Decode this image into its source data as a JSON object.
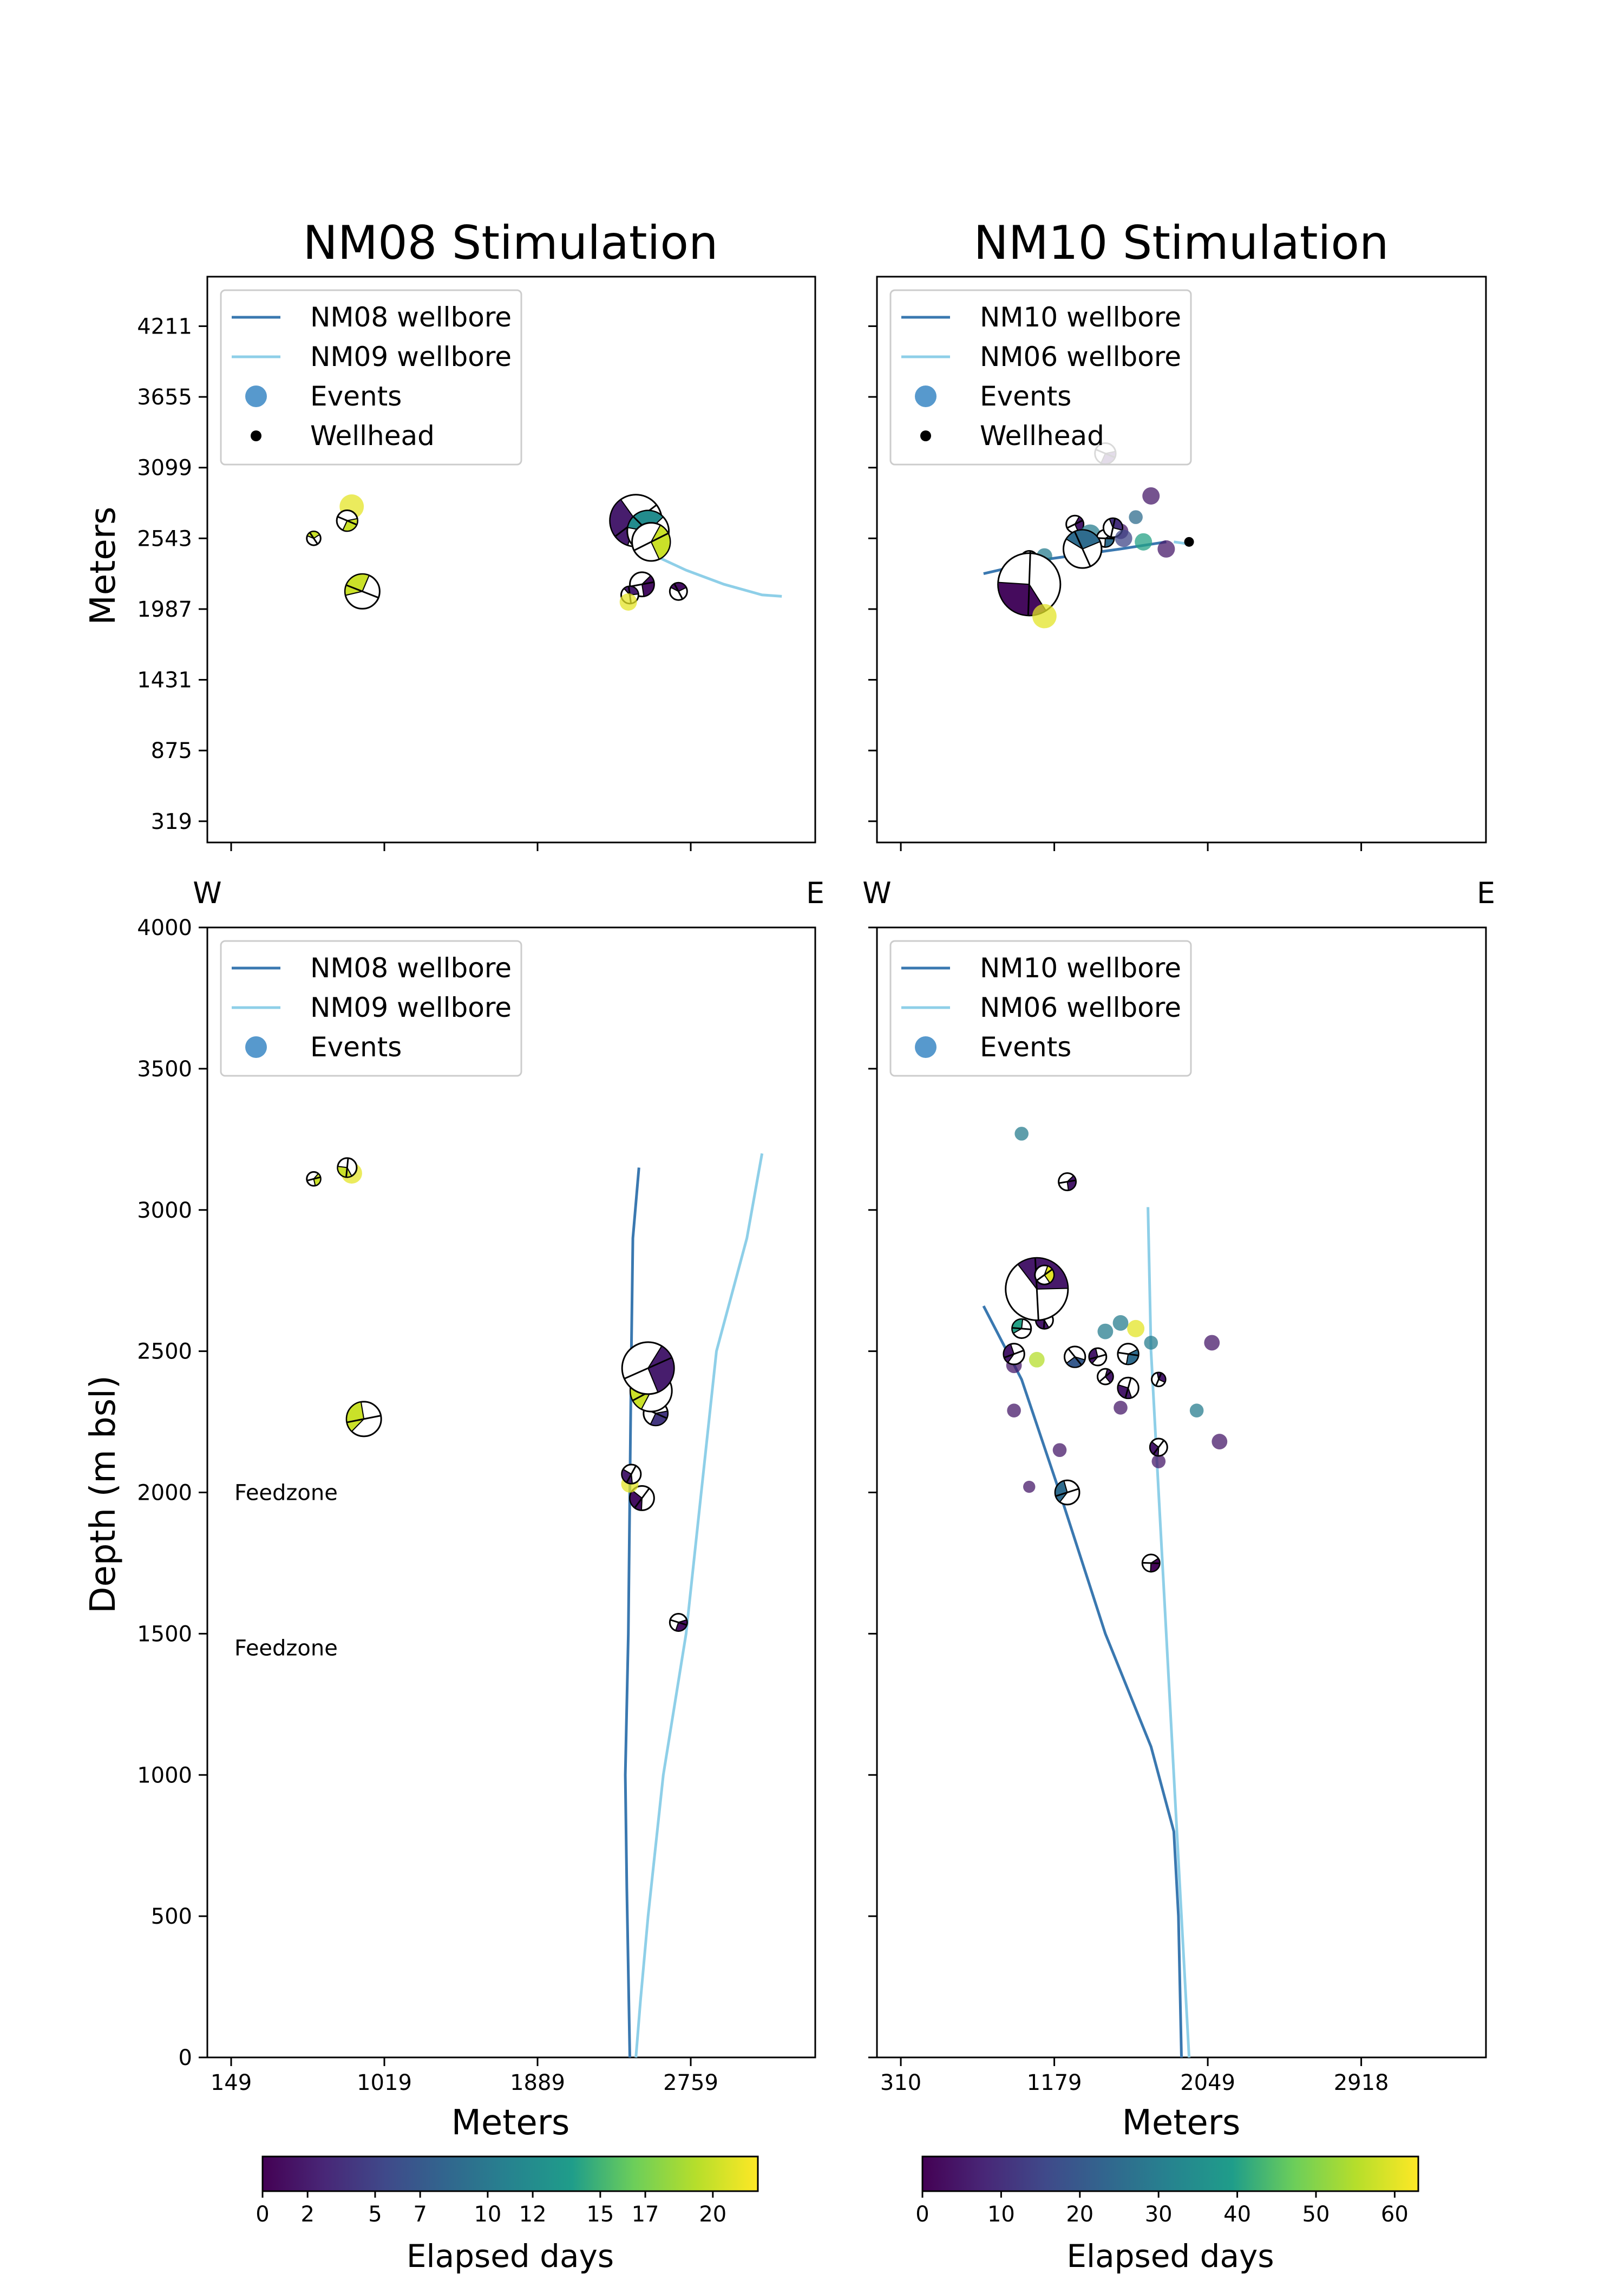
{
  "chart_data": [
    {
      "type": "scatter",
      "title": "NM08 Stimulation",
      "view": "map",
      "ylabel": "Meters",
      "xlim": [
        -1.0,
        3.0
      ],
      "ylim": [
        -0.3,
        7.7
      ],
      "y_ticks": [
        "319",
        "875",
        "1431",
        "1987",
        "2543",
        "3099",
        "3655",
        "4211"
      ],
      "legend": {
        "position": "upper-left",
        "entries": [
          "NM08 wellbore",
          "NM09 wellbore",
          "Events",
          "Wellhead"
        ]
      },
      "series": [
        {
          "name": "NM08 wellbore",
          "color": "#3a78b0",
          "points": [
            [
              1.78,
              4.0
            ],
            [
              1.8,
              3.95
            ]
          ]
        },
        {
          "name": "NM09 wellbore",
          "color": "#8ecfe8",
          "points": [
            [
              1.82,
              4.0
            ],
            [
              1.95,
              3.75
            ],
            [
              2.15,
              3.55
            ],
            [
              2.4,
              3.35
            ],
            [
              2.65,
              3.2
            ],
            [
              2.78,
              3.18
            ]
          ]
        },
        {
          "name": "Wellhead",
          "color": "#000000",
          "points": [
            [
              1.8,
              3.98
            ]
          ]
        }
      ],
      "events": [
        {
          "x": -0.05,
          "y": 4.45,
          "days": 21,
          "size": 14,
          "beach": false
        },
        {
          "x": -0.3,
          "y": 4.0,
          "days": 20,
          "size": 8,
          "beach": true
        },
        {
          "x": -0.08,
          "y": 4.25,
          "days": 20,
          "size": 12,
          "beach": true
        },
        {
          "x": 0.02,
          "y": 3.25,
          "days": 20,
          "size": 20,
          "beach": true
        },
        {
          "x": 1.82,
          "y": 4.25,
          "days": 2,
          "size": 30,
          "beach": true
        },
        {
          "x": 1.9,
          "y": 4.1,
          "days": 12,
          "size": 24,
          "beach": true
        },
        {
          "x": 1.92,
          "y": 3.95,
          "days": 20,
          "size": 22,
          "beach": true
        },
        {
          "x": 1.86,
          "y": 3.35,
          "days": 1,
          "size": 14,
          "beach": true
        },
        {
          "x": 1.78,
          "y": 3.2,
          "days": 2,
          "size": 10,
          "beach": true
        },
        {
          "x": 1.77,
          "y": 3.1,
          "days": 21,
          "size": 10,
          "beach": false
        },
        {
          "x": 2.1,
          "y": 3.25,
          "days": 1,
          "size": 10,
          "beach": true
        }
      ]
    },
    {
      "type": "scatter",
      "title": "NM10 Stimulation",
      "view": "map",
      "xlim": [
        -1.0,
        3.0
      ],
      "ylim": [
        -0.3,
        7.7
      ],
      "legend": {
        "position": "upper-left",
        "entries": [
          "NM10 wellbore",
          "NM06 wellbore",
          "Events",
          "Wellhead"
        ]
      },
      "series": [
        {
          "name": "NM10 wellbore",
          "color": "#3a78b0",
          "points": [
            [
              -0.3,
              3.5
            ],
            [
              0.1,
              3.7
            ],
            [
              0.6,
              3.85
            ],
            [
              0.9,
              3.95
            ]
          ]
        },
        {
          "name": "NM06 wellbore",
          "color": "#8ecfe8",
          "points": [
            [
              0.95,
              3.95
            ],
            [
              1.05,
              3.92
            ]
          ]
        },
        {
          "name": "Wellhead",
          "color": "#000000",
          "points": [
            [
              1.05,
              3.95
            ]
          ]
        }
      ],
      "events": [
        {
          "x": 0.5,
          "y": 5.2,
          "days": 5,
          "size": 12,
          "beach": true
        },
        {
          "x": 0.8,
          "y": 4.6,
          "days": 5,
          "size": 10,
          "beach": false
        },
        {
          "x": 0.7,
          "y": 4.3,
          "days": 25,
          "size": 8,
          "beach": false
        },
        {
          "x": 0.3,
          "y": 4.2,
          "days": 5,
          "size": 10,
          "beach": true
        },
        {
          "x": 0.6,
          "y": 4.1,
          "days": 5,
          "size": 9,
          "beach": false
        },
        {
          "x": 0.4,
          "y": 4.05,
          "days": 30,
          "size": 12,
          "beach": false
        },
        {
          "x": 0.5,
          "y": 4.0,
          "days": 25,
          "size": 10,
          "beach": true
        },
        {
          "x": 0.75,
          "y": 3.95,
          "days": 40,
          "size": 10,
          "beach": false
        },
        {
          "x": 0.35,
          "y": 3.85,
          "days": 25,
          "size": 22,
          "beach": true
        },
        {
          "x": 0.9,
          "y": 3.85,
          "days": 5,
          "size": 10,
          "beach": false
        },
        {
          "x": 0.0,
          "y": 3.7,
          "days": 20,
          "size": 10,
          "beach": true
        },
        {
          "x": 0.1,
          "y": 3.75,
          "days": 30,
          "size": 9,
          "beach": false
        },
        {
          "x": -0.05,
          "y": 3.5,
          "days": 40,
          "size": 10,
          "beach": true
        },
        {
          "x": 0.0,
          "y": 3.35,
          "days": 2,
          "size": 36,
          "beach": true
        },
        {
          "x": 0.1,
          "y": 2.9,
          "days": 60,
          "size": 14,
          "beach": false
        },
        {
          "x": 0.55,
          "y": 4.15,
          "days": 10,
          "size": 11,
          "beach": true
        },
        {
          "x": 0.62,
          "y": 4.0,
          "days": 15,
          "size": 10,
          "beach": false
        }
      ]
    },
    {
      "type": "scatter",
      "view": "depth",
      "ylabel": "Depth (m bsl)",
      "xlabel": "Meters",
      "xlim": [
        -1.0,
        3.0
      ],
      "ylim": [
        4000,
        0
      ],
      "x_ticks": [
        "149",
        "1019",
        "1889",
        "2759"
      ],
      "y_ticks": [
        "0",
        "500",
        "1000",
        "1500",
        "2000",
        "2500",
        "3000",
        "3500",
        "4000"
      ],
      "bands": [
        {
          "label": "Feedzone",
          "top": 1400,
          "bottom": 1500
        },
        {
          "label": "Feedzone",
          "top": 1900,
          "bottom": 2100
        }
      ],
      "legend": {
        "position": "upper-left",
        "entries": [
          "NM08 wellbore",
          "NM09 wellbore",
          "Events"
        ]
      },
      "series": [
        {
          "name": "NM08 wellbore",
          "color": "#3a78b0",
          "points": [
            [
              1.78,
              0
            ],
            [
              1.76,
              600
            ],
            [
              1.75,
              1000
            ],
            [
              1.77,
              1500
            ],
            [
              1.78,
              2000
            ],
            [
              1.79,
              2500
            ],
            [
              1.8,
              2900
            ],
            [
              1.84,
              3150
            ]
          ]
        },
        {
          "name": "NM09 wellbore",
          "color": "#8ecfe8",
          "points": [
            [
              1.82,
              0
            ],
            [
              1.85,
              200
            ],
            [
              1.9,
              500
            ],
            [
              2.0,
              1000
            ],
            [
              2.15,
              1500
            ],
            [
              2.25,
              2000
            ],
            [
              2.35,
              2500
            ],
            [
              2.55,
              2900
            ],
            [
              2.65,
              3200
            ]
          ]
        }
      ],
      "events": [
        {
          "x": 2.1,
          "y": 1540,
          "days": 1,
          "size": 10,
          "beach": true
        },
        {
          "x": 1.86,
          "y": 1980,
          "days": 1,
          "size": 14,
          "beach": true
        },
        {
          "x": 1.78,
          "y": 2030,
          "days": 21,
          "size": 10,
          "beach": false
        },
        {
          "x": 1.79,
          "y": 2065,
          "days": 2,
          "size": 11,
          "beach": true
        },
        {
          "x": 0.03,
          "y": 2260,
          "days": 20,
          "size": 20,
          "beach": true
        },
        {
          "x": 1.95,
          "y": 2280,
          "days": 4,
          "size": 14,
          "beach": true
        },
        {
          "x": 1.92,
          "y": 2360,
          "days": 20,
          "size": 24,
          "beach": true
        },
        {
          "x": 1.9,
          "y": 2440,
          "days": 2,
          "size": 30,
          "beach": true
        },
        {
          "x": -0.3,
          "y": 3110,
          "days": 20,
          "size": 8,
          "beach": true
        },
        {
          "x": -0.05,
          "y": 3130,
          "days": 21,
          "size": 12,
          "beach": false
        },
        {
          "x": -0.08,
          "y": 3150,
          "days": 20,
          "size": 11,
          "beach": true
        }
      ]
    },
    {
      "type": "scatter",
      "view": "depth",
      "xlabel": "Meters",
      "xlim": [
        -1.0,
        3.0
      ],
      "ylim": [
        4000,
        0
      ],
      "x_ticks": [
        "310",
        "1179",
        "2049",
        "2918"
      ],
      "legend": {
        "position": "upper-left",
        "entries": [
          "NM10 wellbore",
          "NM06 wellbore",
          "Events"
        ]
      },
      "series": [
        {
          "name": "NM10 wellbore",
          "color": "#3a78b0",
          "points": [
            [
              1.0,
              0
            ],
            [
              0.98,
              500
            ],
            [
              0.95,
              800
            ],
            [
              0.8,
              1100
            ],
            [
              0.5,
              1500
            ],
            [
              0.2,
              2000
            ],
            [
              -0.05,
              2400
            ],
            [
              -0.3,
              2660
            ]
          ]
        },
        {
          "name": "NM06 wellbore",
          "color": "#8ecfe8",
          "points": [
            [
              1.05,
              0
            ],
            [
              1.0,
              500
            ],
            [
              0.95,
              1000
            ],
            [
              0.9,
              1500
            ],
            [
              0.85,
              2000
            ],
            [
              0.8,
              2500
            ],
            [
              0.78,
              3010
            ]
          ]
        }
      ],
      "events": [
        {
          "x": 0.8,
          "y": 1750,
          "days": 1,
          "size": 10,
          "beach": true
        },
        {
          "x": 0.25,
          "y": 2000,
          "days": 25,
          "size": 14,
          "beach": true
        },
        {
          "x": 0.0,
          "y": 2020,
          "days": 5,
          "size": 7,
          "beach": false
        },
        {
          "x": 0.85,
          "y": 2110,
          "days": 5,
          "size": 8,
          "beach": false
        },
        {
          "x": 0.85,
          "y": 2160,
          "days": 5,
          "size": 10,
          "beach": true
        },
        {
          "x": 0.2,
          "y": 2150,
          "days": 5,
          "size": 8,
          "beach": false
        },
        {
          "x": 1.25,
          "y": 2180,
          "days": 5,
          "size": 9,
          "beach": false
        },
        {
          "x": 1.1,
          "y": 2290,
          "days": 30,
          "size": 8,
          "beach": false
        },
        {
          "x": -0.1,
          "y": 2290,
          "days": 5,
          "size": 8,
          "beach": false
        },
        {
          "x": 0.6,
          "y": 2300,
          "days": 5,
          "size": 8,
          "beach": false
        },
        {
          "x": 0.65,
          "y": 2370,
          "days": 5,
          "size": 12,
          "beach": true
        },
        {
          "x": 0.5,
          "y": 2410,
          "days": 5,
          "size": 9,
          "beach": true
        },
        {
          "x": 0.85,
          "y": 2400,
          "days": 5,
          "size": 8,
          "beach": true
        },
        {
          "x": -0.1,
          "y": 2450,
          "days": 5,
          "size": 9,
          "beach": false
        },
        {
          "x": 0.05,
          "y": 2470,
          "days": 55,
          "size": 9,
          "beach": false
        },
        {
          "x": -0.1,
          "y": 2490,
          "days": 5,
          "size": 12,
          "beach": true
        },
        {
          "x": 0.3,
          "y": 2480,
          "days": 20,
          "size": 12,
          "beach": true
        },
        {
          "x": 0.45,
          "y": 2480,
          "days": 5,
          "size": 10,
          "beach": true
        },
        {
          "x": 0.65,
          "y": 2490,
          "days": 25,
          "size": 12,
          "beach": true
        },
        {
          "x": 1.2,
          "y": 2530,
          "days": 5,
          "size": 9,
          "beach": false
        },
        {
          "x": 0.8,
          "y": 2530,
          "days": 30,
          "size": 8,
          "beach": false
        },
        {
          "x": -0.05,
          "y": 2580,
          "days": 40,
          "size": 11,
          "beach": true
        },
        {
          "x": 0.5,
          "y": 2570,
          "days": 30,
          "size": 9,
          "beach": false
        },
        {
          "x": 0.7,
          "y": 2580,
          "days": 60,
          "size": 10,
          "beach": false
        },
        {
          "x": 0.1,
          "y": 2610,
          "days": 5,
          "size": 10,
          "beach": true
        },
        {
          "x": 0.6,
          "y": 2600,
          "days": 30,
          "size": 9,
          "beach": false
        },
        {
          "x": 0.05,
          "y": 2720,
          "days": 5,
          "size": 36,
          "beach": true
        },
        {
          "x": 0.1,
          "y": 2770,
          "days": 60,
          "size": 11,
          "beach": true
        },
        {
          "x": 0.25,
          "y": 3100,
          "days": 5,
          "size": 10,
          "beach": true
        },
        {
          "x": -0.05,
          "y": 3270,
          "days": 30,
          "size": 8,
          "beach": false
        }
      ]
    }
  ],
  "axis_side_labels": {
    "west": "W",
    "east": "E"
  },
  "colorbars": [
    {
      "label": "Elapsed days",
      "min": 0,
      "max": 22,
      "ticks": [
        "0",
        "2",
        "5",
        "7",
        "10",
        "12",
        "15",
        "17",
        "20"
      ]
    },
    {
      "label": "Elapsed days",
      "min": 0,
      "max": 63,
      "ticks": [
        "0",
        "10",
        "20",
        "30",
        "40",
        "50",
        "60"
      ]
    }
  ],
  "palette": {
    "viridis": [
      "#440154",
      "#482777",
      "#3f4a8a",
      "#31678e",
      "#26838f",
      "#1f9d8a",
      "#6cce5a",
      "#b6de2b",
      "#fee825"
    ],
    "nm_dark": "#3a78b0",
    "nm_light": "#8ecfe8",
    "band": "#e6e6e6"
  }
}
